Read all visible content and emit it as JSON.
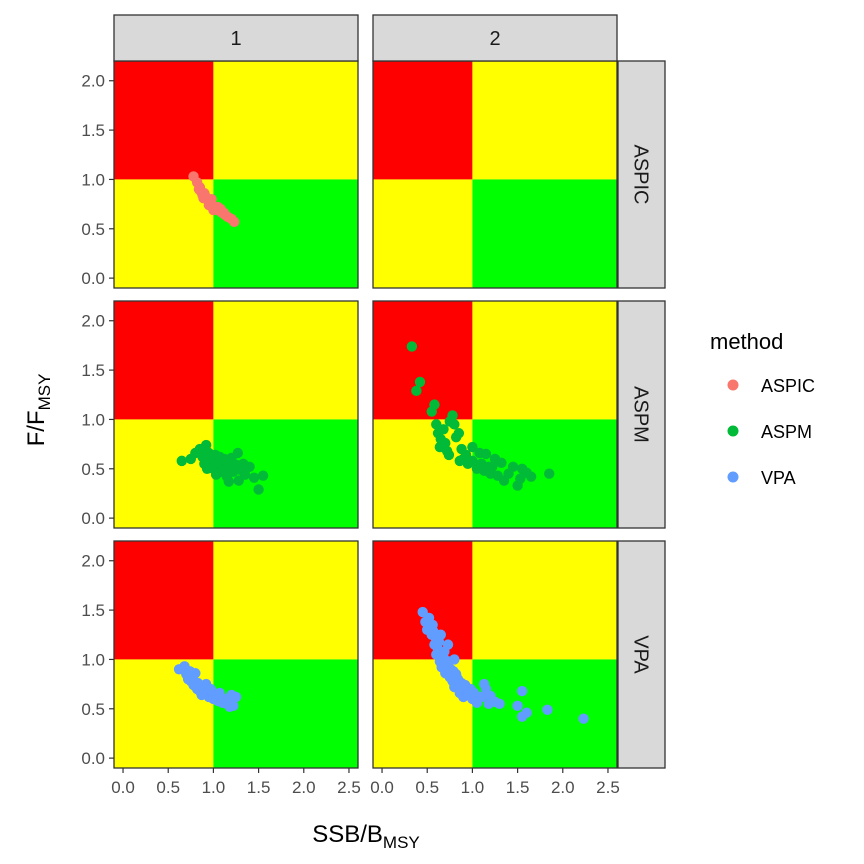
{
  "chart_data": {
    "type": "scatter",
    "facet_columns": [
      "1",
      "2"
    ],
    "facet_rows": [
      "ASPIC",
      "ASPM",
      "VPA"
    ],
    "xlabel": {
      "main": "SSB/B",
      "sub": "MSY"
    },
    "ylabel": {
      "main": "F/F",
      "sub": "MSY"
    },
    "xlim": [
      -0.1,
      2.6
    ],
    "ylim": [
      -0.1,
      2.2
    ],
    "x_ticks": [
      "0.0",
      "0.5",
      "1.0",
      "1.5",
      "2.0",
      "2.5"
    ],
    "y_ticks": [
      "0.0",
      "0.5",
      "1.0",
      "1.5",
      "2.0"
    ],
    "reference": {
      "x": 1.0,
      "y": 1.0
    },
    "quadrants": [
      {
        "zone": "overfished-overfishing",
        "color": "#FF0000"
      },
      {
        "zone": "healthy-overfishing",
        "color": "#FFFF00"
      },
      {
        "zone": "overfished-no-overfishing",
        "color": "#FFFF00"
      },
      {
        "zone": "healthy",
        "color": "#00FF00"
      }
    ],
    "legend": {
      "title": "method",
      "position": "right",
      "entries": [
        {
          "name": "ASPIC",
          "color": "#F8766D"
        },
        {
          "name": "ASPM",
          "color": "#00BA38"
        },
        {
          "name": "VPA",
          "color": "#619CFF"
        }
      ]
    },
    "series": [
      {
        "name": "ASPIC",
        "panel": "1",
        "color": "#F8766D",
        "points": [
          [
            0.78,
            1.03
          ],
          [
            0.82,
            0.97
          ],
          [
            0.85,
            0.92
          ],
          [
            0.86,
            0.88
          ],
          [
            0.88,
            0.84
          ],
          [
            0.9,
            0.86
          ],
          [
            0.92,
            0.82
          ],
          [
            0.94,
            0.79
          ],
          [
            0.96,
            0.76
          ],
          [
            0.98,
            0.8
          ],
          [
            1.0,
            0.73
          ],
          [
            1.02,
            0.7
          ],
          [
            1.05,
            0.72
          ],
          [
            1.07,
            0.68
          ],
          [
            1.1,
            0.66
          ],
          [
            1.13,
            0.64
          ],
          [
            1.16,
            0.62
          ],
          [
            1.2,
            0.6
          ],
          [
            1.23,
            0.57
          ],
          [
            0.84,
            0.9
          ],
          [
            0.89,
            0.81
          ],
          [
            0.95,
            0.74
          ],
          [
            1.0,
            0.69
          ],
          [
            1.08,
            0.7
          ],
          [
            1.12,
            0.66
          ]
        ]
      },
      {
        "name": "ASPIC",
        "panel": "2",
        "color": "#F8766D",
        "points": []
      },
      {
        "name": "ASPM",
        "panel": "1",
        "color": "#00BA38",
        "points": [
          [
            0.65,
            0.58
          ],
          [
            0.75,
            0.6
          ],
          [
            0.8,
            0.66
          ],
          [
            0.85,
            0.7
          ],
          [
            0.88,
            0.62
          ],
          [
            0.9,
            0.55
          ],
          [
            0.92,
            0.74
          ],
          [
            0.95,
            0.66
          ],
          [
            0.97,
            0.6
          ],
          [
            1.0,
            0.58
          ],
          [
            1.0,
            0.5
          ],
          [
            1.02,
            0.64
          ],
          [
            1.05,
            0.56
          ],
          [
            1.07,
            0.62
          ],
          [
            1.08,
            0.47
          ],
          [
            1.1,
            0.55
          ],
          [
            1.12,
            0.6
          ],
          [
            1.14,
            0.5
          ],
          [
            1.15,
            0.42
          ],
          [
            1.18,
            0.56
          ],
          [
            1.2,
            0.61
          ],
          [
            1.22,
            0.47
          ],
          [
            1.25,
            0.54
          ],
          [
            1.27,
            0.66
          ],
          [
            1.3,
            0.49
          ],
          [
            1.33,
            0.55
          ],
          [
            1.35,
            0.44
          ],
          [
            1.4,
            0.52
          ],
          [
            1.45,
            0.41
          ],
          [
            1.5,
            0.29
          ],
          [
            1.55,
            0.43
          ],
          [
            0.93,
            0.5
          ],
          [
            1.03,
            0.44
          ],
          [
            1.17,
            0.37
          ],
          [
            1.28,
            0.38
          ]
        ]
      },
      {
        "name": "ASPM",
        "panel": "2",
        "color": "#00BA38",
        "points": [
          [
            0.33,
            1.74
          ],
          [
            0.38,
            1.29
          ],
          [
            0.42,
            1.38
          ],
          [
            0.55,
            1.08
          ],
          [
            0.58,
            1.15
          ],
          [
            0.6,
            0.95
          ],
          [
            0.62,
            0.86
          ],
          [
            0.65,
            0.8
          ],
          [
            0.68,
            0.9
          ],
          [
            0.7,
            0.76
          ],
          [
            0.72,
            0.68
          ],
          [
            0.75,
            0.98
          ],
          [
            0.78,
            1.04
          ],
          [
            0.8,
            0.95
          ],
          [
            0.82,
            0.82
          ],
          [
            0.85,
            0.86
          ],
          [
            0.88,
            0.7
          ],
          [
            0.9,
            0.6
          ],
          [
            0.93,
            0.64
          ],
          [
            0.95,
            0.55
          ],
          [
            1.0,
            0.58
          ],
          [
            1.0,
            0.72
          ],
          [
            1.05,
            0.5
          ],
          [
            1.1,
            0.55
          ],
          [
            1.13,
            0.48
          ],
          [
            1.15,
            0.65
          ],
          [
            1.18,
            0.52
          ],
          [
            1.2,
            0.45
          ],
          [
            1.25,
            0.6
          ],
          [
            1.28,
            0.43
          ],
          [
            1.32,
            0.56
          ],
          [
            1.35,
            0.38
          ],
          [
            1.4,
            0.45
          ],
          [
            1.45,
            0.52
          ],
          [
            1.5,
            0.33
          ],
          [
            1.53,
            0.4
          ],
          [
            1.55,
            0.5
          ],
          [
            1.6,
            0.46
          ],
          [
            1.65,
            0.42
          ],
          [
            1.85,
            0.45
          ],
          [
            0.64,
            0.72
          ],
          [
            0.74,
            0.64
          ],
          [
            0.86,
            0.58
          ],
          [
            1.08,
            0.66
          ],
          [
            1.22,
            0.52
          ]
        ]
      },
      {
        "name": "VPA",
        "panel": "1",
        "color": "#619CFF",
        "points": [
          [
            0.62,
            0.9
          ],
          [
            0.68,
            0.93
          ],
          [
            0.7,
            0.85
          ],
          [
            0.72,
            0.8
          ],
          [
            0.75,
            0.78
          ],
          [
            0.78,
            0.74
          ],
          [
            0.8,
            0.86
          ],
          [
            0.82,
            0.7
          ],
          [
            0.85,
            0.68
          ],
          [
            0.88,
            0.72
          ],
          [
            0.9,
            0.65
          ],
          [
            0.92,
            0.75
          ],
          [
            0.95,
            0.62
          ],
          [
            0.98,
            0.68
          ],
          [
            1.0,
            0.6
          ],
          [
            1.03,
            0.64
          ],
          [
            1.05,
            0.58
          ],
          [
            1.08,
            0.62
          ],
          [
            1.1,
            0.56
          ],
          [
            1.13,
            0.6
          ],
          [
            1.15,
            0.55
          ],
          [
            1.18,
            0.52
          ],
          [
            1.2,
            0.64
          ],
          [
            1.22,
            0.53
          ],
          [
            1.25,
            0.62
          ],
          [
            0.74,
            0.88
          ],
          [
            0.77,
            0.82
          ],
          [
            0.83,
            0.76
          ],
          [
            0.87,
            0.64
          ],
          [
            0.97,
            0.7
          ],
          [
            1.07,
            0.66
          ],
          [
            1.16,
            0.59
          ]
        ]
      },
      {
        "name": "VPA",
        "panel": "2",
        "color": "#619CFF",
        "points": [
          [
            0.45,
            1.48
          ],
          [
            0.48,
            1.38
          ],
          [
            0.5,
            1.3
          ],
          [
            0.52,
            1.42
          ],
          [
            0.55,
            1.25
          ],
          [
            0.56,
            1.35
          ],
          [
            0.58,
            1.15
          ],
          [
            0.6,
            1.2
          ],
          [
            0.6,
            1.05
          ],
          [
            0.62,
            1.1
          ],
          [
            0.64,
            0.98
          ],
          [
            0.65,
            1.25
          ],
          [
            0.66,
            0.92
          ],
          [
            0.68,
            1.02
          ],
          [
            0.7,
            0.86
          ],
          [
            0.72,
            0.95
          ],
          [
            0.73,
            1.15
          ],
          [
            0.75,
            0.82
          ],
          [
            0.76,
            0.9
          ],
          [
            0.78,
            0.78
          ],
          [
            0.8,
            1.0
          ],
          [
            0.8,
            0.72
          ],
          [
            0.82,
            0.85
          ],
          [
            0.85,
            0.7
          ],
          [
            0.86,
            0.66
          ],
          [
            0.88,
            0.76
          ],
          [
            0.9,
            0.62
          ],
          [
            0.92,
            0.74
          ],
          [
            0.95,
            0.64
          ],
          [
            0.98,
            0.7
          ],
          [
            1.0,
            0.6
          ],
          [
            1.02,
            0.66
          ],
          [
            1.05,
            0.56
          ],
          [
            1.1,
            0.62
          ],
          [
            1.13,
            0.75
          ],
          [
            1.15,
            0.7
          ],
          [
            1.18,
            0.55
          ],
          [
            1.2,
            0.63
          ],
          [
            1.25,
            0.57
          ],
          [
            1.3,
            0.55
          ],
          [
            1.5,
            0.53
          ],
          [
            1.55,
            0.68
          ],
          [
            1.6,
            0.46
          ],
          [
            1.55,
            0.42
          ],
          [
            1.83,
            0.49
          ],
          [
            2.23,
            0.4
          ],
          [
            0.57,
            1.28
          ],
          [
            0.63,
            1.18
          ],
          [
            0.69,
            1.08
          ],
          [
            0.74,
            0.98
          ],
          [
            0.79,
            0.88
          ],
          [
            0.84,
            0.8
          ],
          [
            0.89,
            0.72
          ],
          [
            0.96,
            0.66
          ]
        ]
      }
    ]
  }
}
